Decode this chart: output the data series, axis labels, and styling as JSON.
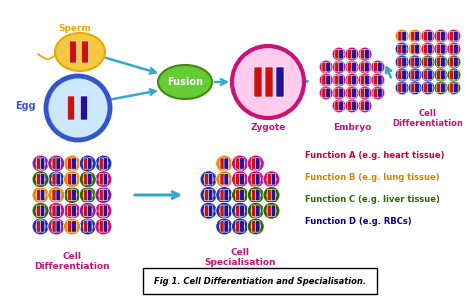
{
  "title": "Fig 1. Cell Differentiation and Specialisation.",
  "background_color": "#ffffff",
  "sperm_label": "Sperm",
  "egg_label": "Egg",
  "fusion_label": "Fusion",
  "zygote_label": "Zygote",
  "embryo_label": "Embryo",
  "cell_diff_top_label": "Cell\nDifferentiation",
  "cell_diff_bot_label": "Cell\nDifferentiation",
  "cell_spec_label": "Cell\nSpecialisation",
  "func_a": "Function A (e.g. heart tissue)",
  "func_b": "Function B (e.g. lung tissue)",
  "func_c": "Function C (e.g. liver tissue)",
  "func_d": "Function D (e.g. RBCs)",
  "func_a_color": "#cc0033",
  "func_b_color": "#cc8800",
  "func_c_color": "#336600",
  "func_d_color": "#000088",
  "sperm_fill": "#f5c842",
  "sperm_edge": "#e8a800",
  "sperm_label_color": "#e8a800",
  "egg_fill": "#cce8ff",
  "egg_edge": "#3355cc",
  "egg_label_color": "#3355cc",
  "fusion_fill": "#66cc33",
  "fusion_edge": "#448811",
  "fusion_text_color": "#ffffff",
  "zygote_fill": "#ffccee",
  "zygote_edge": "#cc1177",
  "zygote_label_color": "#cc1177",
  "embryo_label_color": "#cc1177",
  "cell_diff_top_color": "#cc1177",
  "cell_diff_bot_color": "#cc1177",
  "cell_spec_color": "#cc1177",
  "arrow_color": "#33aacc",
  "chrom_red": "#cc1111",
  "chrom_blue": "#221199",
  "cell_color_pink": "#cc1177",
  "cell_color_orange": "#ee8800",
  "cell_color_green": "#336600",
  "cell_color_blue": "#2233aa",
  "cell_color_purple": "#882299",
  "figsize": [
    4.74,
    3.02
  ],
  "dpi": 100
}
